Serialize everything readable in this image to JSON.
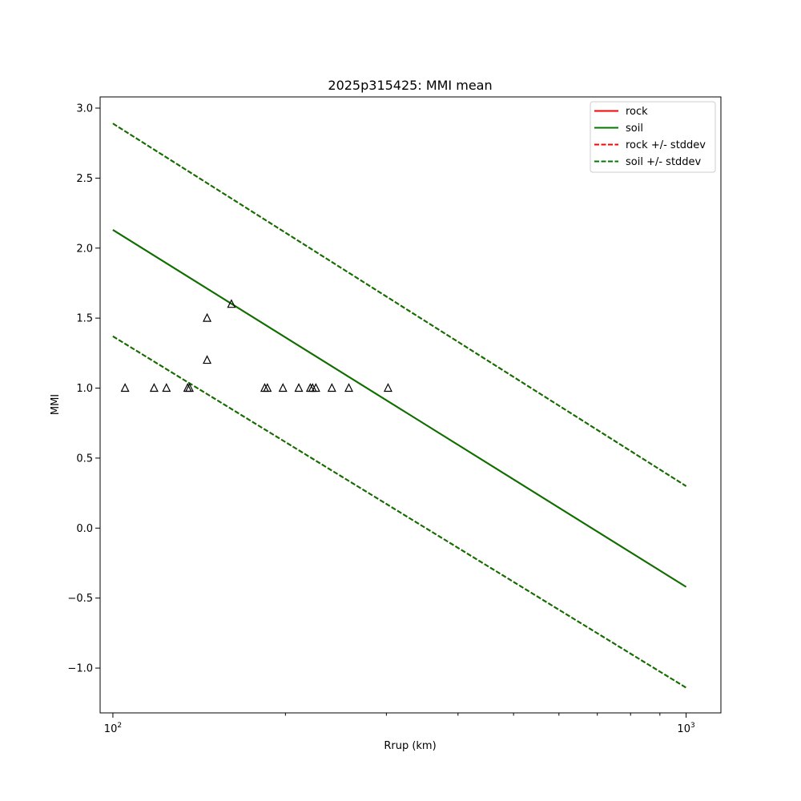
{
  "chart_data": {
    "type": "line",
    "title": "2025p315425: MMI mean",
    "xlabel": "Rrup (km)",
    "ylabel": "MMI",
    "xscale": "log",
    "xlim": [
      95,
      1150
    ],
    "ylim": [
      -1.32,
      3.08
    ],
    "xticks": [
      {
        "value": 100,
        "base": "10",
        "exp": "2"
      },
      {
        "value": 1000,
        "base": "10",
        "exp": "3"
      }
    ],
    "yticks": [
      -1.0,
      -0.5,
      0.0,
      0.5,
      1.0,
      1.5,
      2.0,
      2.5,
      3.0
    ],
    "ytick_labels": [
      "−1.0",
      "−0.5",
      "0.0",
      "0.5",
      "1.0",
      "1.5",
      "2.0",
      "2.5",
      "3.0"
    ],
    "grid": false,
    "legend_position": "top-right",
    "series": [
      {
        "name": "rock",
        "style": "solid",
        "color": "#ff0000",
        "x": [
          100,
          1000
        ],
        "y": [
          2.13,
          -0.42
        ]
      },
      {
        "name": "soil",
        "style": "solid",
        "color": "#007700",
        "x": [
          100,
          1000
        ],
        "y": [
          2.13,
          -0.42
        ]
      },
      {
        "name": "rock +/- stddev",
        "style": "dashed",
        "color": "#ff0000",
        "x": [
          100,
          1000
        ],
        "y_upper": [
          2.89,
          0.3
        ],
        "y_lower": [
          1.37,
          -1.14
        ]
      },
      {
        "name": "soil +/- stddev",
        "style": "dashed",
        "color": "#007700",
        "x": [
          100,
          1000
        ],
        "y_upper": [
          2.89,
          0.3
        ],
        "y_lower": [
          1.37,
          -1.14
        ]
      }
    ],
    "observations": {
      "marker": "triangle",
      "color": "#000000",
      "points": [
        {
          "x": 105,
          "y": 1.0
        },
        {
          "x": 118,
          "y": 1.0
        },
        {
          "x": 124,
          "y": 1.0
        },
        {
          "x": 135,
          "y": 1.0
        },
        {
          "x": 136,
          "y": 1.0
        },
        {
          "x": 146,
          "y": 1.2
        },
        {
          "x": 146,
          "y": 1.5
        },
        {
          "x": 161,
          "y": 1.6
        },
        {
          "x": 184,
          "y": 1.0
        },
        {
          "x": 186,
          "y": 1.0
        },
        {
          "x": 198,
          "y": 1.0
        },
        {
          "x": 211,
          "y": 1.0
        },
        {
          "x": 221,
          "y": 1.0
        },
        {
          "x": 223,
          "y": 1.0
        },
        {
          "x": 226,
          "y": 1.0
        },
        {
          "x": 241,
          "y": 1.0
        },
        {
          "x": 258,
          "y": 1.0
        },
        {
          "x": 302,
          "y": 1.0
        }
      ]
    }
  }
}
